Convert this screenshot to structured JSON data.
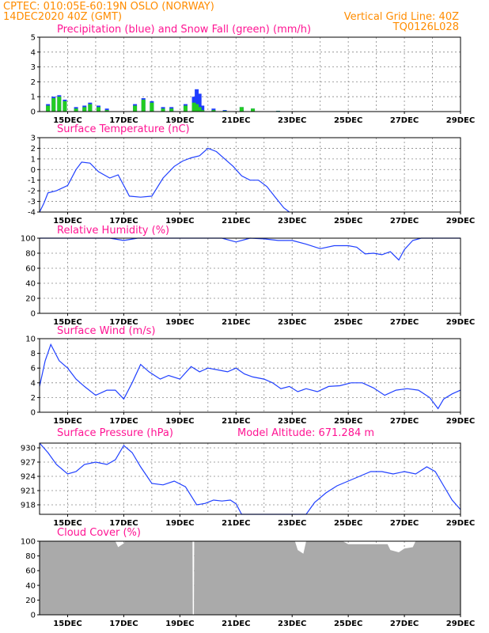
{
  "header": {
    "left_line1": "CPTEC:   010:05E-60:19N   OSLO (NORWAY)",
    "left_line2": "14DEC2020 40Z (GMT)",
    "right_line1": "Vertical Grid Line: 40Z",
    "right_line2": "TQ0126L028"
  },
  "colors": {
    "precip": "#1e3cff",
    "snow": "#22cc22",
    "line": "#2040ff",
    "cloud": "#aaaaaa",
    "header": "#ff8c00",
    "title": "#ff1493"
  },
  "chart_data": [
    {
      "type": "bar",
      "title": "Precipitation (blue) and Snow Fall (green) (mm/h)",
      "x_categories": [
        "15DEC",
        "17DEC",
        "19DEC",
        "21DEC",
        "23DEC",
        "25DEC",
        "27DEC",
        "29DEC"
      ],
      "x_range_days": [
        14,
        29
      ],
      "ylim": [
        0,
        5
      ],
      "yticks": [
        "0",
        "1",
        "2",
        "3",
        "4",
        "5"
      ],
      "series": [
        {
          "name": "Precipitation",
          "color": "#1e3cff",
          "x": [
            14.3,
            14.5,
            14.7,
            14.9,
            15.3,
            15.6,
            15.8,
            16.1,
            16.4,
            17.4,
            17.7,
            18.0,
            18.4,
            18.7,
            19.2,
            19.5,
            19.6,
            19.7,
            19.8,
            20.2,
            20.6,
            21.2,
            21.6,
            22.5,
            24.5
          ],
          "values": [
            0.5,
            1.0,
            1.1,
            0.8,
            0.3,
            0.4,
            0.6,
            0.4,
            0.2,
            0.5,
            0.9,
            0.7,
            0.3,
            0.3,
            0.5,
            1.0,
            1.5,
            1.2,
            0.4,
            0.2,
            0.1,
            0.3,
            0.2,
            0.05,
            0.02
          ]
        },
        {
          "name": "Snow Fall",
          "color": "#22cc22",
          "x": [
            14.3,
            14.5,
            14.7,
            14.9,
            15.3,
            15.6,
            15.8,
            16.1,
            16.4,
            17.4,
            17.7,
            18.0,
            18.4,
            18.7,
            19.2,
            19.5,
            19.6,
            19.7,
            19.8,
            20.2,
            20.6,
            21.2,
            21.6,
            22.5,
            24.5
          ],
          "values": [
            0.4,
            0.9,
            1.0,
            0.7,
            0.2,
            0.3,
            0.5,
            0.3,
            0.1,
            0.4,
            0.8,
            0.6,
            0.2,
            0.2,
            0.4,
            0.6,
            0.5,
            0.3,
            0.1,
            0.1,
            0.05,
            0.3,
            0.2,
            0.04,
            0.02
          ]
        }
      ]
    },
    {
      "type": "line",
      "title": "Surface Temperature (nC)",
      "x_categories": [
        "15DEC",
        "17DEC",
        "19DEC",
        "21DEC",
        "23DEC",
        "25DEC",
        "27DEC",
        "29DEC"
      ],
      "x_range_days": [
        14,
        29
      ],
      "ylim": [
        -4,
        3
      ],
      "yticks": [
        "-4",
        "-3",
        "-2",
        "-1",
        "0",
        "1",
        "2",
        "3"
      ],
      "series": [
        {
          "name": "",
          "x": [
            14.0,
            14.15,
            14.3,
            14.6,
            15.0,
            15.3,
            15.5,
            15.8,
            16.1,
            16.5,
            16.8,
            17.0,
            17.2,
            17.6,
            18.0,
            18.4,
            18.8,
            19.1,
            19.4,
            19.7,
            20.0,
            20.3,
            20.6,
            20.9,
            21.2,
            21.5,
            21.8,
            22.1,
            22.4,
            22.7,
            22.9
          ],
          "values": [
            -4.0,
            -3.2,
            -2.2,
            -2.0,
            -1.5,
            0.0,
            0.7,
            0.6,
            -0.2,
            -0.8,
            -0.5,
            -1.5,
            -2.5,
            -2.6,
            -2.5,
            -0.8,
            0.3,
            0.8,
            1.1,
            1.3,
            2.0,
            1.7,
            1.0,
            0.3,
            -0.6,
            -1.0,
            -1.0,
            -1.6,
            -2.6,
            -3.6,
            -4.0
          ]
        }
      ]
    },
    {
      "type": "line",
      "title": "Relative Humidity (%)",
      "x_categories": [
        "15DEC",
        "17DEC",
        "19DEC",
        "21DEC",
        "23DEC",
        "25DEC",
        "27DEC",
        "29DEC"
      ],
      "x_range_days": [
        14,
        29
      ],
      "ylim": [
        0,
        100
      ],
      "yticks": [
        "0",
        "20",
        "40",
        "60",
        "80",
        "100"
      ],
      "series": [
        {
          "name": "",
          "x": [
            14.0,
            16.5,
            17.0,
            17.5,
            20.5,
            21.0,
            21.5,
            22.0,
            22.5,
            23.0,
            23.5,
            24.0,
            24.5,
            25.0,
            25.3,
            25.6,
            25.9,
            26.2,
            26.5,
            26.8,
            27.0,
            27.3,
            27.6,
            28.0,
            29.0
          ],
          "values": [
            100,
            100,
            97,
            100,
            100,
            95,
            100,
            99,
            97,
            97,
            92,
            86,
            90,
            90,
            88,
            79,
            80,
            78,
            82,
            71,
            85,
            97,
            100,
            100,
            100
          ]
        }
      ]
    },
    {
      "type": "line",
      "title": "Surface Wind (m/s)",
      "x_categories": [
        "15DEC",
        "17DEC",
        "19DEC",
        "21DEC",
        "23DEC",
        "25DEC",
        "27DEC",
        "29DEC"
      ],
      "x_range_days": [
        14,
        29
      ],
      "ylim": [
        0,
        10
      ],
      "yticks": [
        "0",
        "2",
        "4",
        "6",
        "8",
        "10"
      ],
      "series": [
        {
          "name": "",
          "x": [
            14.0,
            14.2,
            14.4,
            14.7,
            15.0,
            15.3,
            15.6,
            16.0,
            16.4,
            16.7,
            17.0,
            17.3,
            17.6,
            17.9,
            18.3,
            18.6,
            19.0,
            19.4,
            19.7,
            20.0,
            20.3,
            20.7,
            21.0,
            21.3,
            21.6,
            22.0,
            22.3,
            22.6,
            22.9,
            23.2,
            23.5,
            23.9,
            24.3,
            24.7,
            25.1,
            25.5,
            25.9,
            26.3,
            26.7,
            27.1,
            27.5,
            27.9,
            28.2,
            28.4,
            28.7,
            29.0
          ],
          "values": [
            3.5,
            7.0,
            9.2,
            7.0,
            6.0,
            4.5,
            3.5,
            2.3,
            3.0,
            3.0,
            1.8,
            4.0,
            6.5,
            5.5,
            4.5,
            5.0,
            4.5,
            6.2,
            5.5,
            6.0,
            5.8,
            5.5,
            6.0,
            5.2,
            4.8,
            4.5,
            4.0,
            3.2,
            3.5,
            2.8,
            3.2,
            2.8,
            3.5,
            3.6,
            4.0,
            4.0,
            3.3,
            2.3,
            3.0,
            3.2,
            3.0,
            2.0,
            0.5,
            1.8,
            2.5,
            3.0
          ]
        }
      ]
    },
    {
      "type": "line",
      "title": "Surface Pressure (hPa)",
      "annotation": "Model Altitude: 671.284 m",
      "x_categories": [
        "15DEC",
        "17DEC",
        "19DEC",
        "21DEC",
        "23DEC",
        "25DEC",
        "27DEC",
        "29DEC"
      ],
      "x_range_days": [
        14,
        29
      ],
      "ylim": [
        916,
        931
      ],
      "yticks": [
        "918",
        "921",
        "924",
        "927",
        "930"
      ],
      "series": [
        {
          "name": "",
          "x": [
            14.0,
            14.3,
            14.6,
            15.0,
            15.3,
            15.6,
            16.0,
            16.4,
            16.7,
            17.0,
            17.3,
            17.6,
            18.0,
            18.4,
            18.8,
            19.2,
            19.6,
            19.9,
            20.2,
            20.5,
            20.8,
            21.0,
            21.2,
            23.5,
            23.8,
            24.2,
            24.6,
            25.0,
            25.4,
            25.8,
            26.2,
            26.6,
            27.0,
            27.4,
            27.8,
            28.1,
            28.4,
            28.7,
            29.0
          ],
          "values": [
            931,
            929,
            926.5,
            924.5,
            925.0,
            926.5,
            927.0,
            926.5,
            927.5,
            930.5,
            929.0,
            926.0,
            922.5,
            922.2,
            923.0,
            921.8,
            918.0,
            918.3,
            919.0,
            918.8,
            919.0,
            918.2,
            916.0,
            916.0,
            918.5,
            920.5,
            922.0,
            923.0,
            924.0,
            925.0,
            925.0,
            924.5,
            925.0,
            924.5,
            926.0,
            925.0,
            922.0,
            919.0,
            917.0
          ]
        }
      ]
    },
    {
      "type": "area",
      "title": "Cloud Cover (%)",
      "x_categories": [
        "15DEC",
        "17DEC",
        "19DEC",
        "21DEC",
        "23DEC",
        "25DEC",
        "27DEC",
        "29DEC"
      ],
      "x_range_days": [
        14,
        29
      ],
      "ylim": [
        0,
        100
      ],
      "yticks": [
        "0",
        "20",
        "40",
        "60",
        "80",
        "100"
      ],
      "series": [
        {
          "name": "",
          "x": [
            14.0,
            16.7,
            16.8,
            17.0,
            17.05,
            19.45,
            19.46,
            19.5,
            19.51,
            23.1,
            23.2,
            23.4,
            23.5,
            24.8,
            25.0,
            26.4,
            26.5,
            26.8,
            27.0,
            27.3,
            27.4,
            29.0
          ],
          "values": [
            100,
            100,
            92,
            97,
            100,
            100,
            0,
            0,
            100,
            100,
            88,
            83,
            100,
            100,
            96,
            96,
            88,
            85,
            90,
            92,
            100,
            100
          ]
        }
      ]
    }
  ]
}
